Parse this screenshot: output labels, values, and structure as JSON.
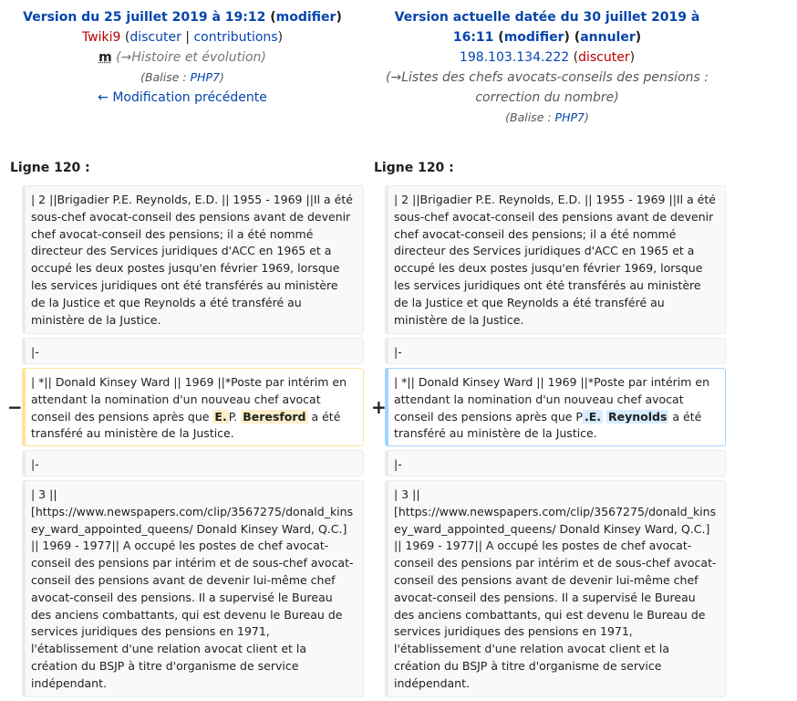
{
  "left_header": {
    "title_prefix": "Version du 25 juillet 2019 à 19:12",
    "edit_link": "modifier",
    "user": "Twiki9",
    "talk": "discuter",
    "sep": "|",
    "contribs": "contributions",
    "minor": "m",
    "summary": "(→Histoire et évolution)",
    "tag_label": "Balise : ",
    "tag_value": "PHP7",
    "prev_link": "← Modification précédente"
  },
  "right_header": {
    "title_line1": "Version actuelle datée du 30 juillet 2019 à",
    "title_line2": "16:11",
    "edit_link": "modifier",
    "undo_link": "annuler",
    "ip": "198.103.134.222",
    "talk": "discuter",
    "summary_line1": "(→Listes des chefs avocats-conseils des pensions :",
    "summary_line2": "correction du nombre)",
    "tag_label": "Balise : ",
    "tag_value": "PHP7"
  },
  "line_label": "Ligne 120 :",
  "markers": {
    "minus": "−",
    "plus": "+"
  },
  "rows": {
    "row1": "| 2 ||Brigadier P.E. Reynolds, E.D.  || 1955 - 1969 ||Il a été sous-chef avocat-conseil des pensions avant de devenir chef avocat-conseil des pensions; il a été nommé directeur des Services juridiques d'ACC en 1965 et a occupé les deux postes jusqu'en février 1969, lorsque les services juridiques ont été transférés au ministère de la Justice et que Reynolds a été transféré au ministère de la Justice.",
    "row2": "|-",
    "row4": "|-",
    "row5": "| 3 || [https://www.newspapers.com/clip/3567275/donald_kinsey_ward_appointed_queens/ Donald Kinsey Ward, Q.C.] || 1969 - 1977|| A occupé les postes de chef avocat-conseil des pensions par intérim et de sous-chef avocat-conseil des pensions avant de devenir lui-même chef avocat-conseil des  pensions. Il a supervisé le Bureau des anciens combattants, qui est devenu le Bureau de services juridiques des pensions en 1971, l'établissement d'une relation avocat client et la création du BSJP à titre d'organisme de service indépendant."
  },
  "changed": {
    "old_a": "| *|| Donald Kinsey Ward  || 1969 ||*Poste par intérim en attendant la nomination d'un nouveau chef avocat conseil des pensions après que ",
    "old_m1": "E.",
    "old_b": "P. ",
    "old_m2": "Beresford",
    "old_c": " a été transféré au ministère de la Justice.",
    "new_a": "| *|| Donald Kinsey Ward  || 1969 ||*Poste par intérim en attendant la nomination d'un nouveau chef avocat conseil des pensions après que P",
    "new_m1": ".E.",
    "new_b": " ",
    "new_m2": "Reynolds",
    "new_c": " a été transféré au ministère de la Justice."
  }
}
